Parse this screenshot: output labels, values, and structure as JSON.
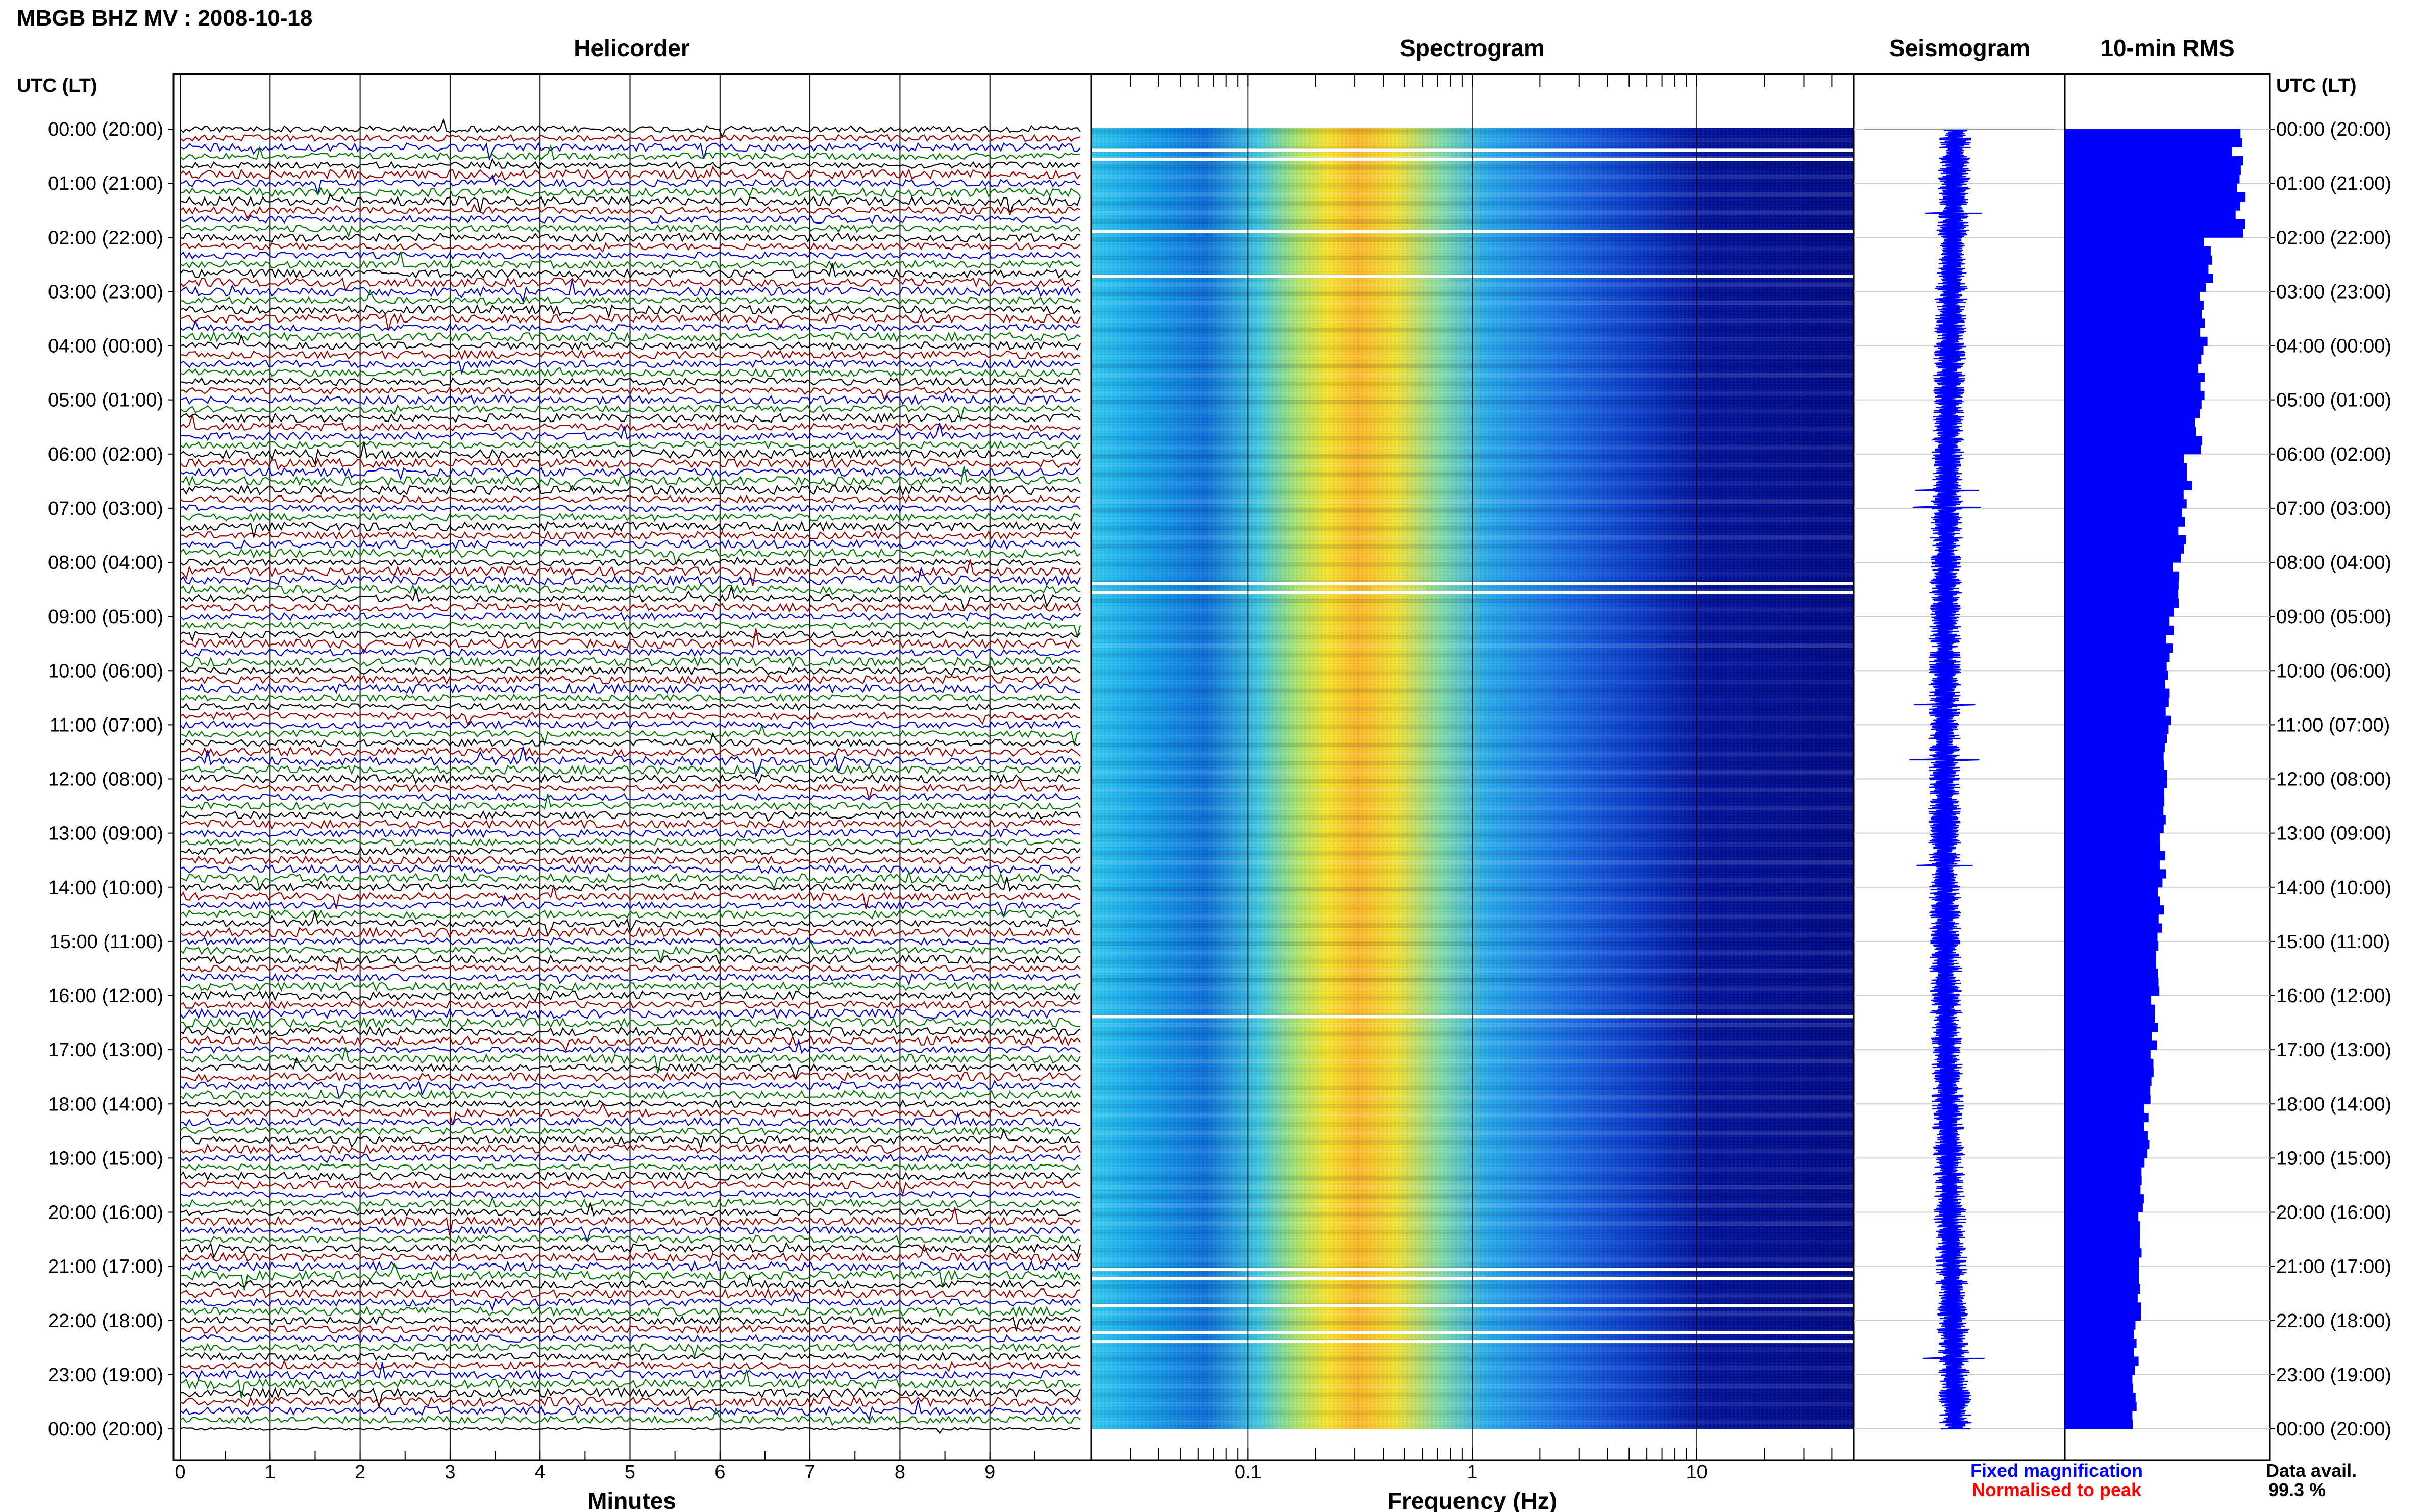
{
  "title": "MBGB BHZ MV : 2008-10-18",
  "panels": {
    "helicorder": "Helicorder",
    "spectrogram": "Spectrogram",
    "seismogram": "Seismogram",
    "rms": "10-min RMS"
  },
  "time_axis": {
    "left_header": "UTC (LT)",
    "right_header": "UTC (LT)",
    "labels": [
      "00:00 (20:00)",
      "01:00 (21:00)",
      "02:00 (22:00)",
      "03:00 (23:00)",
      "04:00 (00:00)",
      "05:00 (01:00)",
      "06:00 (02:00)",
      "07:00 (03:00)",
      "08:00 (04:00)",
      "09:00 (05:00)",
      "10:00 (06:00)",
      "11:00 (07:00)",
      "12:00 (08:00)",
      "13:00 (09:00)",
      "14:00 (10:00)",
      "15:00 (11:00)",
      "16:00 (12:00)",
      "17:00 (13:00)",
      "18:00 (14:00)",
      "19:00 (15:00)",
      "20:00 (16:00)",
      "21:00 (17:00)",
      "22:00 (18:00)",
      "23:00 (19:00)",
      "00:00 (20:00)"
    ]
  },
  "helicorder_axis": {
    "xlabel": "Minutes",
    "ticks": [
      "0",
      "1",
      "2",
      "3",
      "4",
      "5",
      "6",
      "7",
      "8",
      "9"
    ]
  },
  "spectrogram_axis": {
    "xlabel": "Frequency (Hz)",
    "ticks": [
      "0.1",
      "1",
      "10"
    ]
  },
  "legend": {
    "fixed": "Fixed magnification",
    "normalised": "Normalised to peak",
    "fixed_color": "#0000ff",
    "normalised_color": "#ff0000"
  },
  "data_avail": {
    "label": "Data avail.",
    "value": "99.3 %"
  },
  "colors": {
    "trace_cycle": [
      "#000000",
      "#990000",
      "#0000cc",
      "#007700"
    ],
    "rms_bar": "#0000ff",
    "seismogram": "#0000ff"
  },
  "chart_data": [
    {
      "type": "line",
      "title": "Helicorder",
      "xlabel": "Minutes",
      "xlim": [
        0,
        10
      ],
      "ylabel": "UTC (LT)",
      "rows_per_hour": 6,
      "rows": 144,
      "trace_color_cycle": [
        "black",
        "red",
        "blue",
        "green"
      ]
    },
    {
      "type": "heatmap",
      "title": "Spectrogram",
      "xlabel": "Frequency (Hz)",
      "xscale": "log",
      "xlim": [
        0.02,
        50
      ],
      "peak_frequency_hz": 0.3,
      "colormap": "jet",
      "data_gaps_utc": [
        "00:20",
        "00:30",
        "01:50",
        "02:40",
        "08:20",
        "08:30",
        "16:20",
        "21:00",
        "21:10",
        "21:40",
        "22:10",
        "22:20"
      ]
    },
    {
      "type": "line",
      "title": "Seismogram",
      "series": [
        {
          "name": "Fixed magnification"
        }
      ]
    },
    {
      "type": "bar",
      "title": "10-min RMS",
      "hours": [
        0,
        1,
        2,
        3,
        4,
        5,
        6,
        7,
        8,
        9,
        10,
        11,
        12,
        13,
        14,
        15,
        16,
        17,
        18,
        19,
        20,
        21,
        22,
        23
      ],
      "values": [
        0.88,
        0.9,
        0.74,
        0.72,
        0.7,
        0.68,
        0.63,
        0.6,
        0.57,
        0.54,
        0.53,
        0.52,
        0.51,
        0.5,
        0.49,
        0.47,
        0.46,
        0.45,
        0.42,
        0.4,
        0.39,
        0.38,
        0.37,
        0.36
      ],
      "scale": "relative"
    }
  ]
}
